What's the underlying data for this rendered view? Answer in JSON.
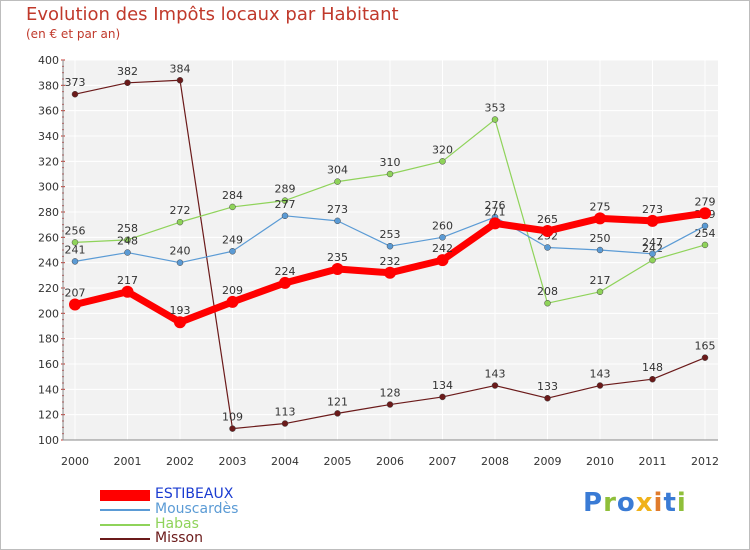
{
  "header": {
    "title": "Evolution des Impôts locaux par Habitant",
    "subtitle": "(en € et par an)"
  },
  "brand": {
    "letters": [
      "P",
      "r",
      "o",
      "x",
      "i",
      "t",
      "i"
    ],
    "colors": [
      "#3a7bd5",
      "#8fbf3a",
      "#3a7bd5",
      "#f0b21a",
      "#e07b2c",
      "#3a7bd5",
      "#8fbf3a"
    ]
  },
  "chart_data": {
    "type": "line",
    "title": "Evolution des Impôts locaux par Habitant",
    "subtitle": "(en € et par an)",
    "x": [
      "2000",
      "2001",
      "2002",
      "2003",
      "2004",
      "2005",
      "2006",
      "2007",
      "2008",
      "2009",
      "2010",
      "2011",
      "2012"
    ],
    "ylim": [
      100,
      400
    ],
    "yticks": [
      100,
      120,
      140,
      160,
      180,
      200,
      220,
      240,
      260,
      280,
      300,
      320,
      340,
      360,
      380,
      400
    ],
    "grid": true,
    "legend_position": "bottom-left",
    "series": [
      {
        "name": "Misson",
        "color": "#6b1a1a",
        "values": [
          373,
          382,
          384,
          109,
          113,
          121,
          128,
          134,
          143,
          133,
          143,
          148,
          165
        ]
      },
      {
        "name": "Habas",
        "color": "#8fd35a",
        "values": [
          256,
          258,
          272,
          284,
          289,
          304,
          310,
          320,
          353,
          208,
          217,
          242,
          254
        ]
      },
      {
        "name": "Mouscardès",
        "color": "#5b9bd5",
        "values": [
          241,
          248,
          240,
          249,
          277,
          273,
          253,
          260,
          276,
          252,
          250,
          247,
          269
        ]
      },
      {
        "name": "ESTIBEAUX",
        "color": "#ff0000",
        "values": [
          207,
          217,
          193,
          209,
          224,
          235,
          232,
          242,
          271,
          265,
          275,
          273,
          279
        ]
      }
    ],
    "legend_order": [
      "ESTIBEAUX",
      "Mouscardès",
      "Habas",
      "Misson"
    ]
  }
}
